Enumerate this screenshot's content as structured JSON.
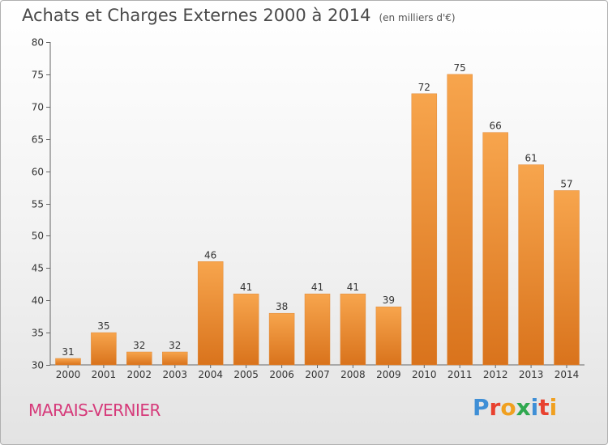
{
  "title": "Achats et Charges Externes 2000 à 2014",
  "unit_note": "(en milliers d'€)",
  "town": "MARAIS-VERNIER",
  "logo": {
    "letters": [
      "P",
      "r",
      "o",
      "x",
      "i",
      "t",
      "i"
    ],
    "colors": [
      "#3f8fd6",
      "#e8412f",
      "#f0a020",
      "#2fa84f",
      "#3f8fd6",
      "#e8412f",
      "#f0a020"
    ]
  },
  "chart_data": {
    "type": "bar",
    "title": "Achats et Charges Externes 2000 à 2014",
    "xlabel": "",
    "ylabel": "",
    "categories": [
      "2000",
      "2001",
      "2002",
      "2003",
      "2004",
      "2005",
      "2006",
      "2007",
      "2008",
      "2009",
      "2010",
      "2011",
      "2012",
      "2013",
      "2014"
    ],
    "values": [
      31,
      35,
      32,
      32,
      46,
      41,
      38,
      41,
      41,
      39,
      72,
      75,
      66,
      61,
      57
    ],
    "ylim": [
      30,
      80
    ],
    "yticks": [
      30,
      35,
      40,
      45,
      50,
      55,
      60,
      65,
      70,
      75,
      80
    ],
    "grid": false,
    "bar_color": "#f0922f"
  }
}
